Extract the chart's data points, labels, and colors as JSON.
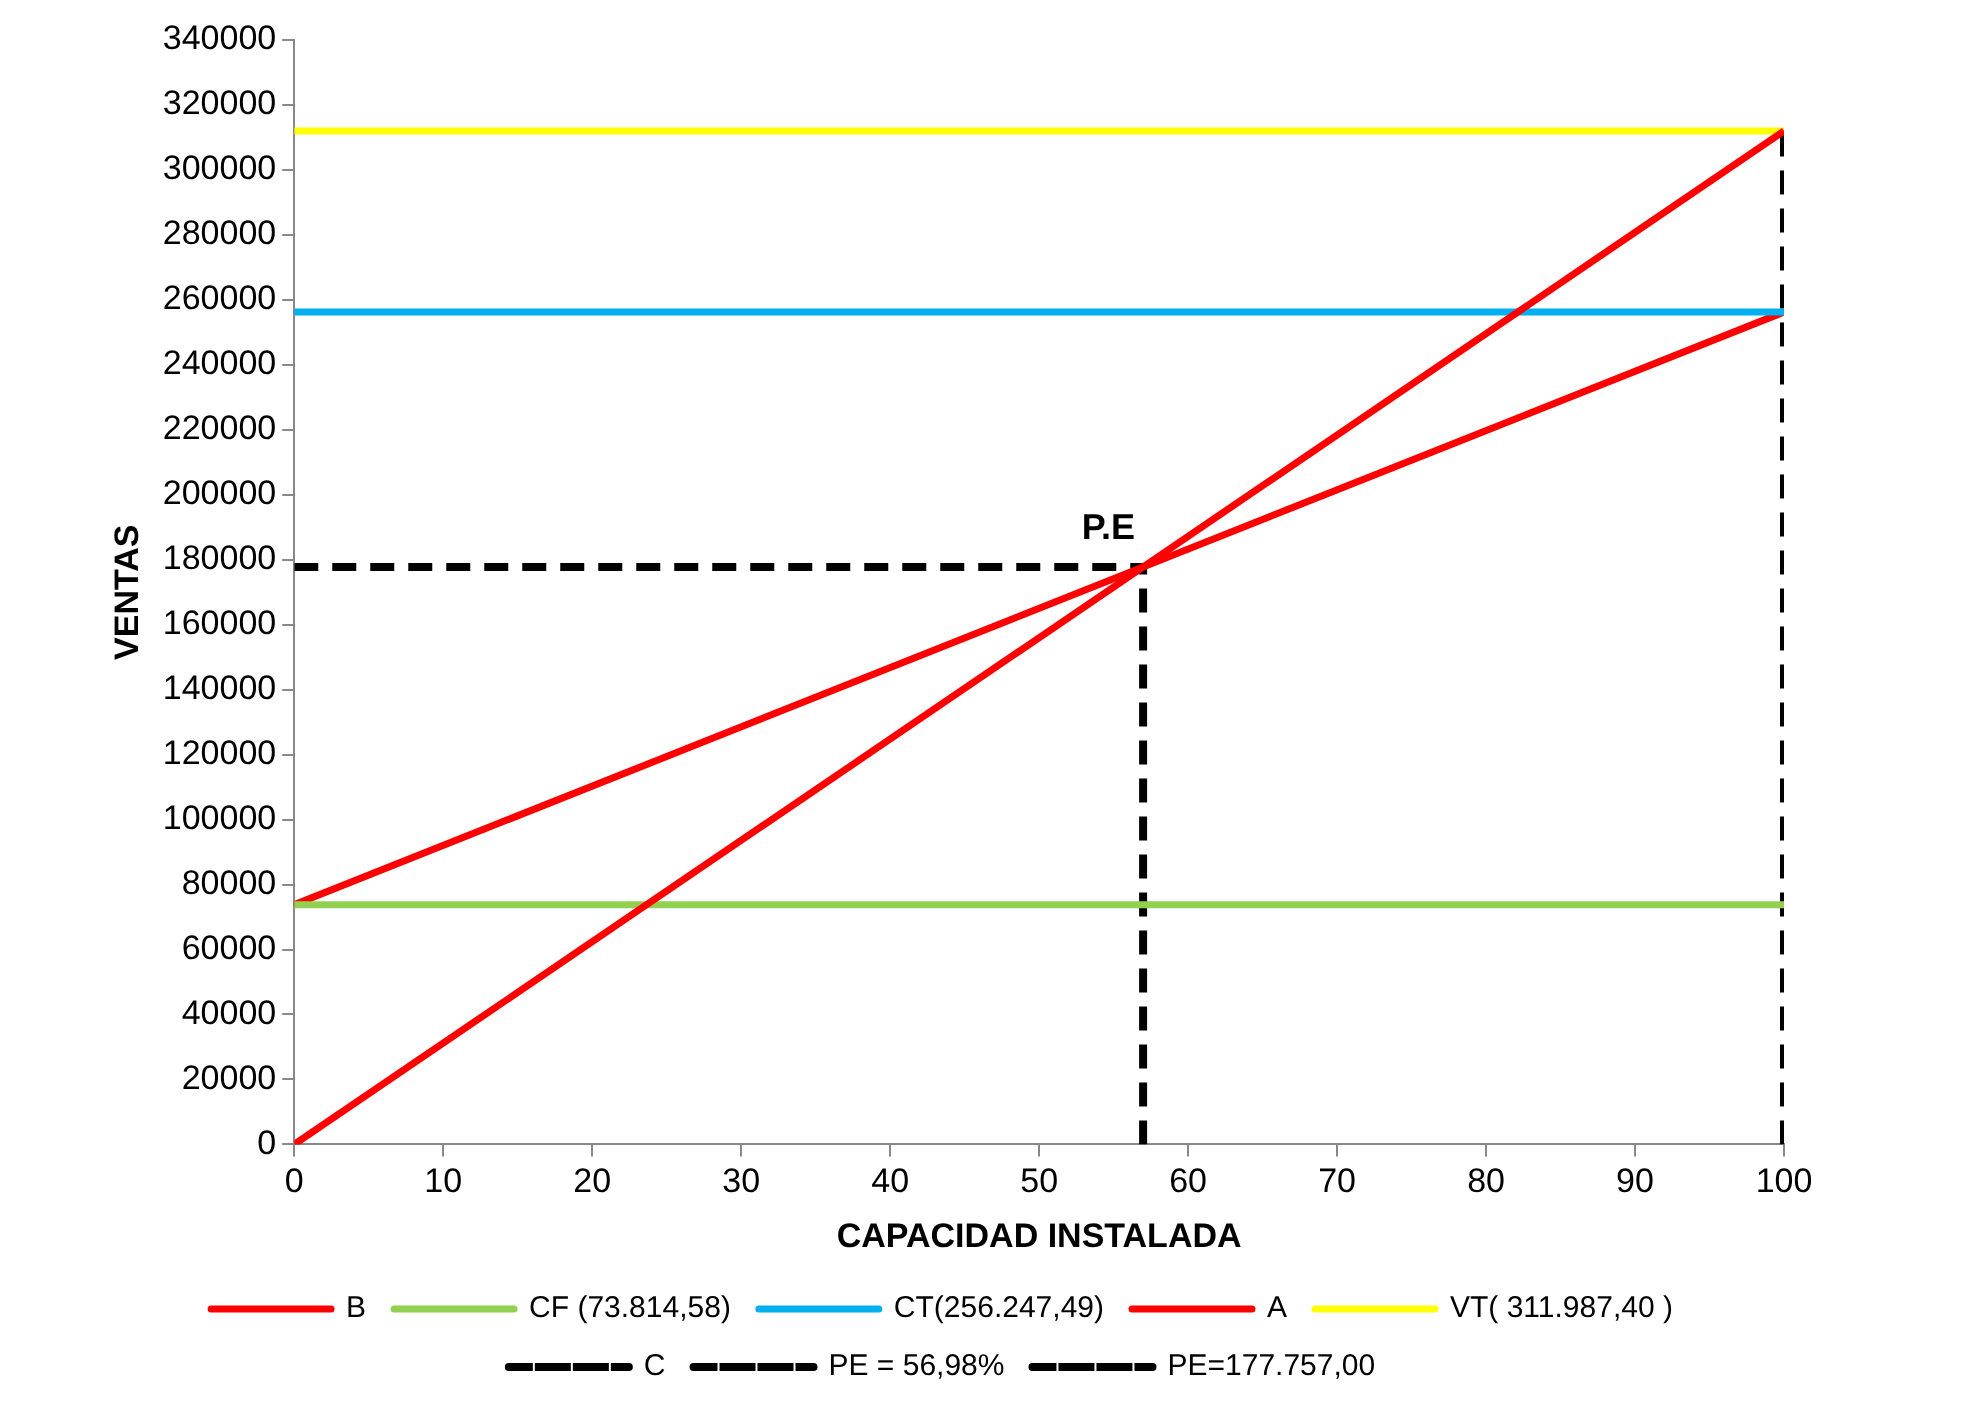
{
  "chart_data": {
    "type": "line",
    "xlabel": "CAPACIDAD INSTALADA",
    "ylabel": "VENTAS",
    "xlim": [
      0,
      100
    ],
    "xticks": [
      0,
      10,
      20,
      30,
      40,
      50,
      60,
      70,
      80,
      90,
      100
    ],
    "ylim": [
      0,
      340000
    ],
    "yticks": [
      0,
      20000,
      40000,
      60000,
      80000,
      100000,
      120000,
      140000,
      160000,
      180000,
      200000,
      220000,
      240000,
      260000,
      280000,
      300000,
      320000,
      340000
    ],
    "grid": false,
    "legend": "bottom",
    "marker": "none",
    "annotations": [
      {
        "text": "P.E",
        "x": 56.98,
        "y": 177757
      }
    ],
    "series": [
      {
        "name": "B",
        "color": "#ff0000",
        "x": [
          0,
          100
        ],
        "values": [
          0,
          311987.4
        ]
      },
      {
        "name": "CF (73.814,58)",
        "color": "#92d050",
        "x": [
          0,
          100
        ],
        "values": [
          73814.58,
          73814.58
        ]
      },
      {
        "name": "CT(256.247,49)",
        "color": "#00b0f0",
        "x": [
          0,
          100
        ],
        "values": [
          256247.49,
          256247.49
        ]
      },
      {
        "name": "A",
        "color": "#ff0000",
        "x": [
          0,
          100
        ],
        "values": [
          73814.58,
          256247.49
        ]
      },
      {
        "name": "VT( 311.987,40 )",
        "color": "#ffff00",
        "x": [
          0,
          100
        ],
        "values": [
          311987.4,
          311987.4
        ]
      },
      {
        "name": "C",
        "color": "#000000",
        "line_style": "dashed",
        "x": [
          100,
          100
        ],
        "values": [
          0,
          311987.4
        ]
      },
      {
        "name": "PE = 56,98%",
        "color": "#000000",
        "line_style": "dashed",
        "x": [
          56.98,
          56.98
        ],
        "values": [
          0,
          177757
        ]
      },
      {
        "name": "PE=177.757,00",
        "color": "#000000",
        "line_style": "dashed",
        "x": [
          0,
          56.98
        ],
        "values": [
          177757,
          177757
        ]
      }
    ]
  }
}
